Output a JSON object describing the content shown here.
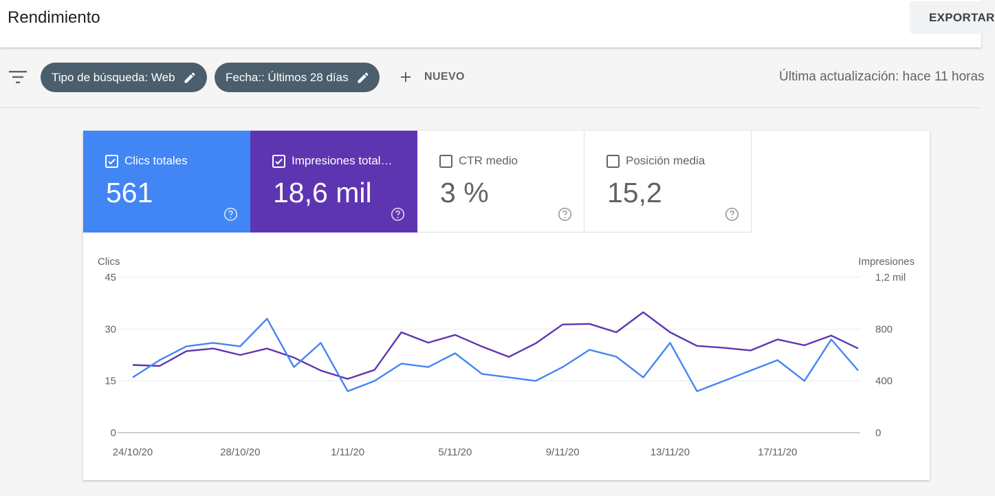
{
  "header": {
    "title": "Rendimiento",
    "export_label": "EXPORTAR",
    "export_icon": "download-icon"
  },
  "filters": {
    "filter_icon": "filter-list-icon",
    "chips": [
      {
        "label": "Tipo de búsqueda: Web",
        "icon": "pencil-icon"
      },
      {
        "label": "Fecha:: Últimos 28 días",
        "icon": "pencil-icon"
      }
    ],
    "new_label": "NUEVO",
    "new_icon": "plus-icon",
    "last_update": "Última actualización: hace 11 horas"
  },
  "metrics": [
    {
      "label": "Clics totales",
      "value": "561",
      "checked": true,
      "color": "#4285f4"
    },
    {
      "label": "Impresiones total…",
      "value": "18,6 mil",
      "checked": true,
      "color": "#5e35b1"
    },
    {
      "label": "CTR medio",
      "value": "3 %",
      "checked": false
    },
    {
      "label": "Posición media",
      "value": "15,2",
      "checked": false
    }
  ],
  "chart_data": {
    "type": "line",
    "ylabel": "Clics",
    "y2label": "Impresiones",
    "ylim": [
      0,
      45
    ],
    "y2lim": [
      0,
      1200
    ],
    "yticks": [
      "0",
      "15",
      "30",
      "45"
    ],
    "y2ticks": [
      "0",
      "400",
      "800",
      "1,2 mil"
    ],
    "xticks": [
      "24/10/20",
      "28/10/20",
      "1/11/20",
      "5/11/20",
      "9/11/20",
      "13/11/20",
      "17/11/20"
    ],
    "x": [
      "24/10/20",
      "25/10/20",
      "26/10/20",
      "27/10/20",
      "28/10/20",
      "29/10/20",
      "30/10/20",
      "31/10/20",
      "1/11/20",
      "2/11/20",
      "3/11/20",
      "4/11/20",
      "5/11/20",
      "6/11/20",
      "7/11/20",
      "8/11/20",
      "9/11/20",
      "10/11/20",
      "11/11/20",
      "12/11/20",
      "13/11/20",
      "14/11/20",
      "15/11/20",
      "16/11/20",
      "17/11/20",
      "18/11/20",
      "19/11/20",
      "20/11/20"
    ],
    "grid": true,
    "series": [
      {
        "name": "Clics",
        "axis": "left",
        "color": "#4285f4",
        "values": [
          16,
          21,
          25,
          26,
          25,
          33,
          19,
          26,
          12,
          15,
          20,
          19,
          23,
          17,
          16,
          15,
          19,
          24,
          22,
          16,
          26,
          12,
          15,
          18,
          21,
          15,
          27,
          18
        ]
      },
      {
        "name": "Impresiones",
        "axis": "right",
        "color": "#5e35b1",
        "values": [
          523,
          515,
          630,
          650,
          600,
          650,
          580,
          480,
          415,
          485,
          775,
          695,
          755,
          665,
          585,
          690,
          835,
          840,
          775,
          930,
          775,
          670,
          655,
          635,
          720,
          675,
          750,
          650
        ]
      }
    ]
  }
}
